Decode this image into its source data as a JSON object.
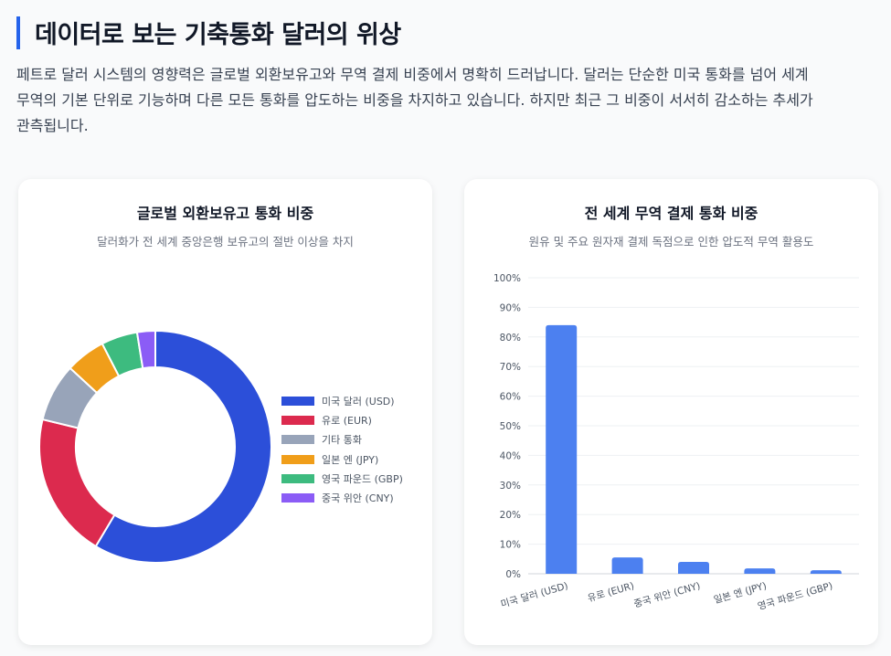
{
  "header": {
    "title": "데이터로 보는 기축통화 달러의 위상",
    "intro": "페트로 달러 시스템의 영향력은 글로벌 외환보유고와 무역 결제 비중에서 명확히 드러납니다. 달러는 단순한 미국 통화를 넘어 세계 무역의 기본 단위로 기능하며 다른 모든 통화를 압도하는 비중을 차지하고 있습니다. 하지만 최근 그 비중이 서서히 감소하는 추세가 관측됩니다."
  },
  "colors": {
    "accent": "#2563eb",
    "usd": "#2c4fd9",
    "eur": "#dc2a4e",
    "other": "#98a4b9",
    "jpy": "#f09e1a",
    "gbp": "#3dbb7f",
    "cny": "#8b5cf6",
    "bar": "#4c80f0"
  },
  "chart_data": [
    {
      "type": "pie",
      "variant": "doughnut",
      "title": "글로벌 외환보유고 통화 비중",
      "subtitle": "달러화가 전 세계 중앙은행 보유고의 절반 이상을 차지",
      "legend_position": "right",
      "categories": [
        "미국 달러 (USD)",
        "유로 (EUR)",
        "기타 통화",
        "일본 엔 (JPY)",
        "영국 파운드 (GBP)",
        "중국 위안 (CNY)"
      ],
      "values": [
        58,
        20,
        8,
        5.5,
        5,
        2.5
      ],
      "colors": [
        "#2c4fd9",
        "#dc2a4e",
        "#98a4b9",
        "#f09e1a",
        "#3dbb7f",
        "#8b5cf6"
      ]
    },
    {
      "type": "bar",
      "title": "전 세계 무역 결제 통화 비중",
      "subtitle": "원유 및 주요 원자재 결제 독점으로 인한 압도적 무역 활용도",
      "categories": [
        "미국 달러 (USD)",
        "유로 (EUR)",
        "중국 위안 (CNY)",
        "일본 엔 (JPY)",
        "영국 파운드 (GBP)"
      ],
      "values": [
        84,
        5.5,
        4,
        1.8,
        1.2
      ],
      "ylim": [
        0,
        100
      ],
      "yticks": [
        "0%",
        "10%",
        "20%",
        "30%",
        "40%",
        "50%",
        "60%",
        "70%",
        "80%",
        "90%",
        "100%"
      ],
      "grid": true,
      "legend_position": "none"
    }
  ]
}
